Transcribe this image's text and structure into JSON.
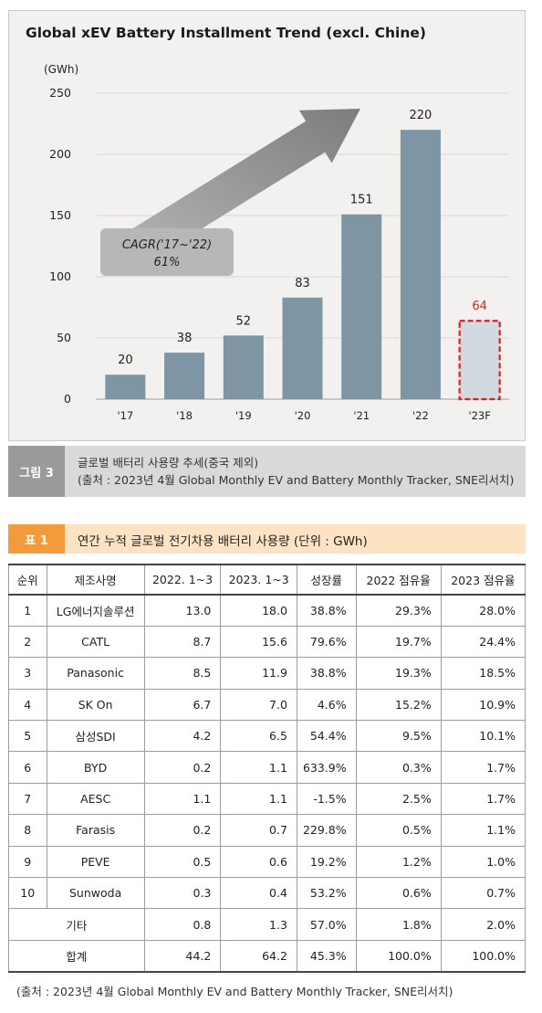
{
  "figure": {
    "title": "Global xEV Battery Installment Trend (excl. Chine)",
    "caption_tag": "그림 3",
    "caption_line1": "글로벌 배터리 사용량 추세(중국 제외)",
    "caption_line2": "(출처 : 2023년 4월 Global Monthly EV and Battery Monthly Tracker, SNE리서치)"
  },
  "chart_data": {
    "type": "bar",
    "title": "Global xEV Battery Installment Trend (excl. Chine)",
    "ylabel": "(GWh)",
    "ylim": [
      0,
      250
    ],
    "yticks": [
      "0",
      "50",
      "100",
      "150",
      "200",
      "250"
    ],
    "categories": [
      "'17",
      "'18",
      "'19",
      "'20",
      "'21",
      "'22",
      "'23F"
    ],
    "values": [
      20,
      38,
      52,
      83,
      151,
      220,
      64
    ],
    "value_labels": [
      "20",
      "38",
      "52",
      "83",
      "151",
      "220",
      "64"
    ],
    "forecast_index": 6,
    "annotation_line1": "CAGR('17~'22)",
    "annotation_line2": "61%",
    "grid": true,
    "colors": {
      "bar": "#7e95a3",
      "forecast_fill": "#d1dae1",
      "forecast_border": "#d9231f",
      "forecast_label": "#d9231f",
      "arrow": "#8a8a8a"
    }
  },
  "table": {
    "tag": "표 1",
    "title": "연간 누적 글로벌 전기차용 배터리 사용량 (단위 : GWh)",
    "headers": [
      "순위",
      "제조사명",
      "2022. 1~3",
      "2023. 1~3",
      "성장률",
      "2022 점유율",
      "2023 점유율"
    ],
    "rows": [
      [
        "1",
        "LG에너지솔루션",
        "13.0",
        "18.0",
        "38.8%",
        "29.3%",
        "28.0%"
      ],
      [
        "2",
        "CATL",
        "8.7",
        "15.6",
        "79.6%",
        "19.7%",
        "24.4%"
      ],
      [
        "3",
        "Panasonic",
        "8.5",
        "11.9",
        "38.8%",
        "19.3%",
        "18.5%"
      ],
      [
        "4",
        "SK On",
        "6.7",
        "7.0",
        "4.6%",
        "15.2%",
        "10.9%"
      ],
      [
        "5",
        "삼성SDI",
        "4.2",
        "6.5",
        "54.4%",
        "9.5%",
        "10.1%"
      ],
      [
        "6",
        "BYD",
        "0.2",
        "1.1",
        "633.9%",
        "0.3%",
        "1.7%"
      ],
      [
        "7",
        "AESC",
        "1.1",
        "1.1",
        "-1.5%",
        "2.5%",
        "1.7%"
      ],
      [
        "8",
        "Farasis",
        "0.2",
        "0.7",
        "229.8%",
        "0.5%",
        "1.1%"
      ],
      [
        "9",
        "PEVE",
        "0.5",
        "0.6",
        "19.2%",
        "1.2%",
        "1.0%"
      ],
      [
        "10",
        "Sunwoda",
        "0.3",
        "0.4",
        "53.2%",
        "0.6%",
        "0.7%"
      ]
    ],
    "other_row": [
      "기타",
      "0.8",
      "1.3",
      "57.0%",
      "1.8%",
      "2.0%"
    ],
    "total_row": [
      "합계",
      "44.2",
      "64.2",
      "45.3%",
      "100.0%",
      "100.0%"
    ],
    "source": "(출처 : 2023년 4월 Global Monthly EV and Battery Monthly Tracker, SNE리서치)"
  }
}
